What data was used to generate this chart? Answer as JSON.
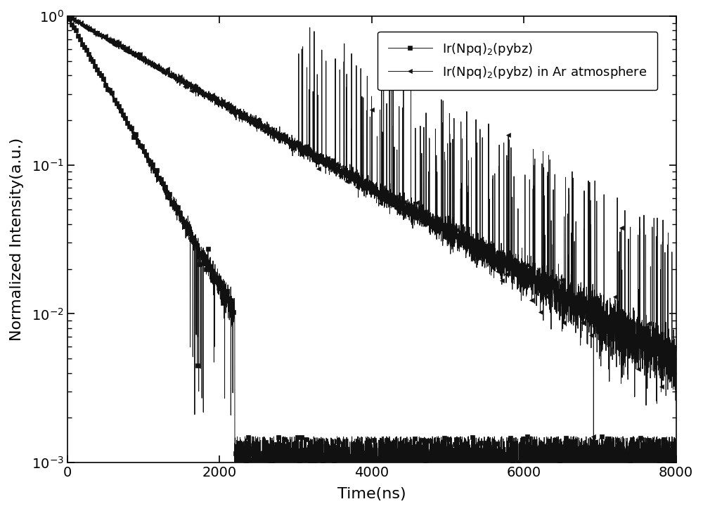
{
  "xlabel": "Time(ns)",
  "ylabel": "Normalized Intensity(a.u.)",
  "xlim": [
    0,
    8000
  ],
  "ylim_log": [
    -3,
    0
  ],
  "legend1": "Ir(Npq)$_2$(pybz)",
  "legend2": "Ir(Npq)$_2$(pybz) in Ar atmosphere",
  "line_color": "#111111",
  "background_color": "#ffffff",
  "tau1": 480,
  "tau2": 1500,
  "noise_floor": 0.001,
  "noise_amplitude": 0.0008,
  "seed1": 7,
  "seed2": 13,
  "n_points": 8000,
  "marker_every1": 28,
  "marker_every2": 28,
  "marker_size": 4,
  "line_width": 0.7
}
